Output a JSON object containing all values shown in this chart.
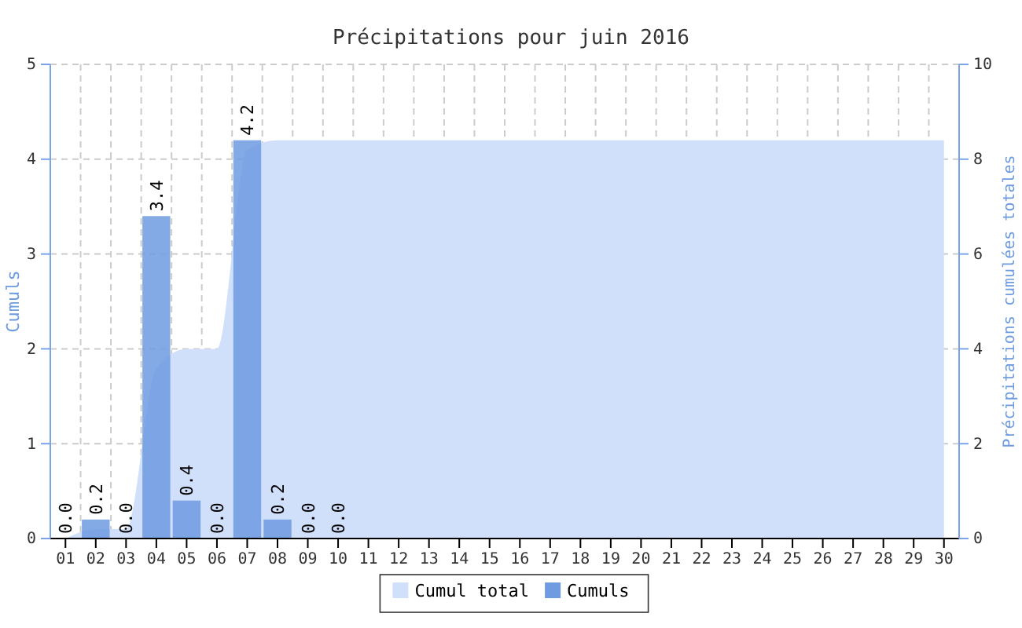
{
  "chart_data": {
    "type": "bar",
    "title": "Précipitations pour juin 2016",
    "ylabel": "Cumuls",
    "y2label": "Précipitations cumulées totales",
    "categories": [
      "01",
      "02",
      "03",
      "04",
      "05",
      "06",
      "07",
      "08",
      "09",
      "10",
      "11",
      "12",
      "13",
      "14",
      "15",
      "16",
      "17",
      "18",
      "19",
      "20",
      "21",
      "22",
      "23",
      "24",
      "25",
      "26",
      "27",
      "28",
      "29",
      "30"
    ],
    "series": [
      {
        "name": "Cumul total",
        "type": "area",
        "axis": "y2",
        "color": "#d0dffa",
        "values": [
          0,
          0.2,
          0.2,
          3.6,
          4.0,
          4.0,
          8.2,
          8.4,
          8.4,
          8.4,
          8.4,
          8.4,
          8.4,
          8.4,
          8.4,
          8.4,
          8.4,
          8.4,
          8.4,
          8.4,
          8.4,
          8.4,
          8.4,
          8.4,
          8.4,
          8.4,
          8.4,
          8.4,
          8.4,
          8.4
        ]
      },
      {
        "name": "Cumuls",
        "color": "#6f9be0",
        "values": [
          0,
          0.2,
          0,
          3.4,
          0.4,
          0,
          4.2,
          0.2,
          0,
          0,
          null,
          null,
          null,
          null,
          null,
          null,
          null,
          null,
          null,
          null,
          null,
          null,
          null,
          null,
          null,
          null,
          null,
          null,
          null,
          null
        ],
        "value_labels": [
          "0.0",
          "0.2",
          "0.0",
          "3.4",
          "0.4",
          "0.0",
          "4.2",
          "0.2",
          "0.0",
          "0.0",
          null,
          null,
          null,
          null,
          null,
          null,
          null,
          null,
          null,
          null,
          null,
          null,
          null,
          null,
          null,
          null,
          null,
          null,
          null,
          null
        ]
      }
    ],
    "ylim": [
      0,
      5
    ],
    "yticks": [
      0,
      1,
      2,
      3,
      4,
      5
    ],
    "y2lim": [
      0,
      10
    ],
    "y2ticks": [
      0,
      2,
      4,
      6,
      8,
      10
    ],
    "grid": true,
    "legend": "bottom"
  }
}
